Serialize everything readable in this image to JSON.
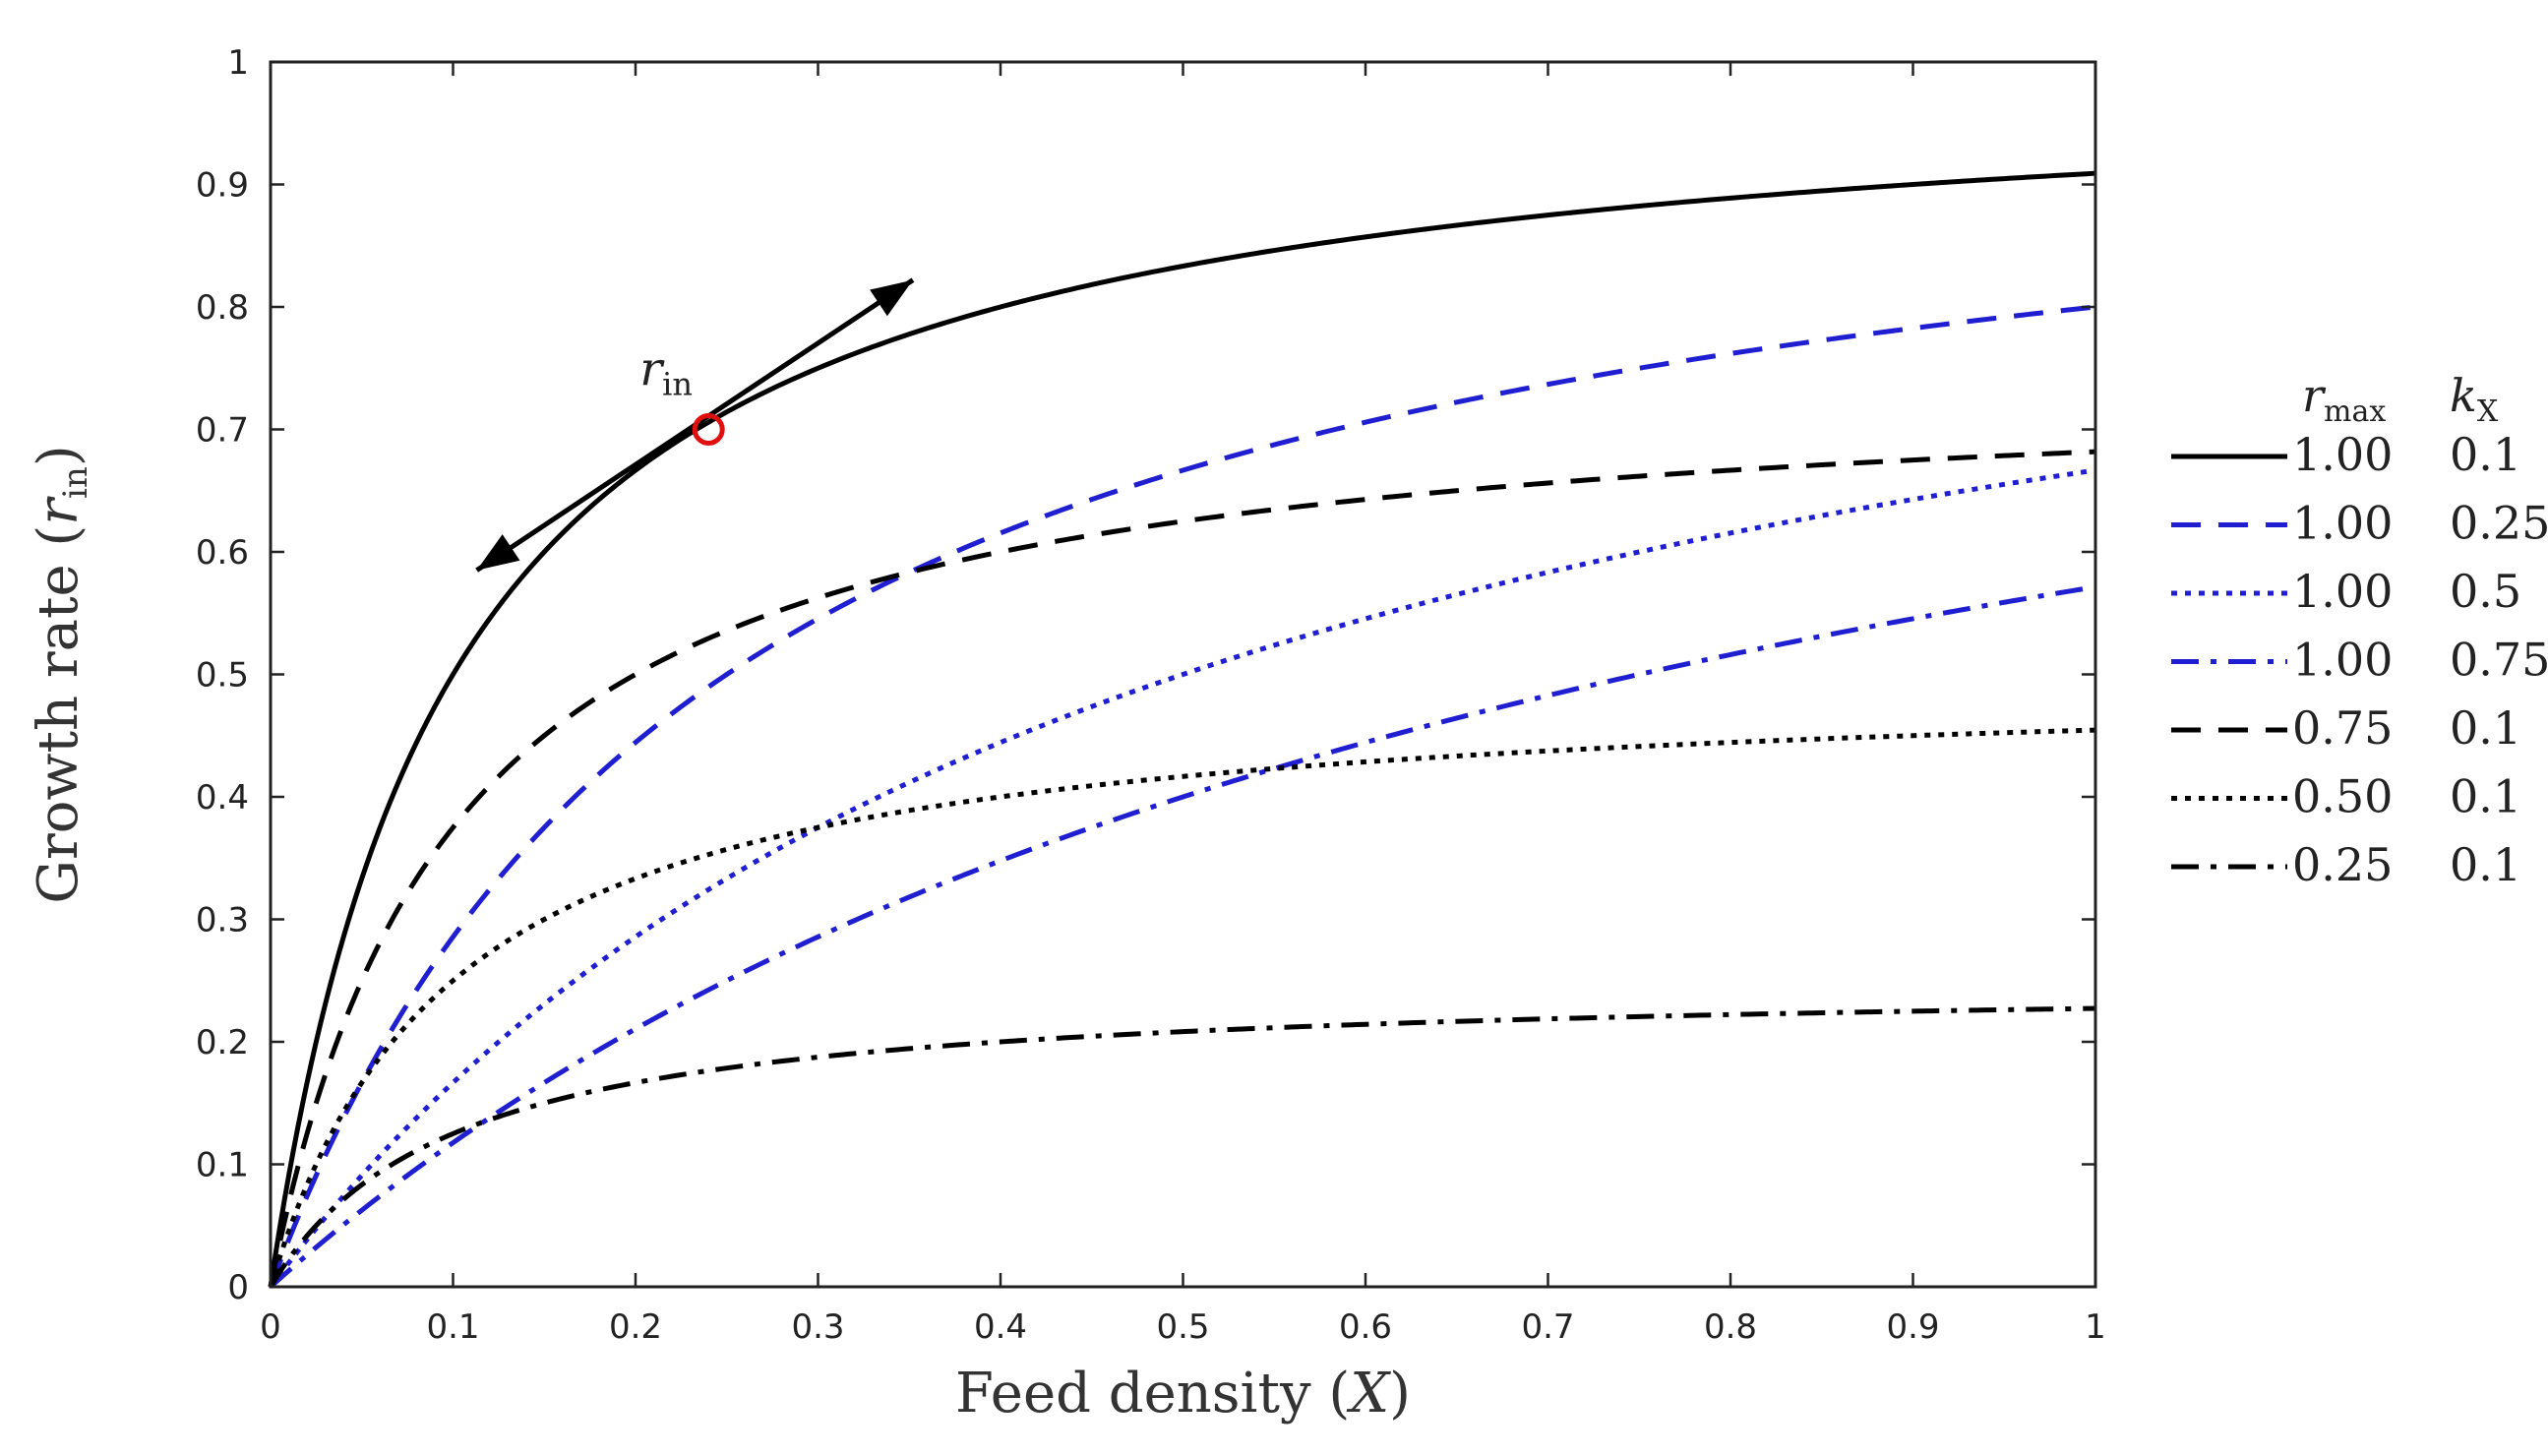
{
  "chart_data": {
    "type": "line",
    "xlabel": {
      "main": "Feed density (",
      "var": "X",
      "close": ")"
    },
    "ylabel": {
      "main": "Growth rate (",
      "var": "r",
      "sub": "in",
      "close": ")"
    },
    "xlim": [
      0,
      1
    ],
    "ylim": [
      0,
      1
    ],
    "xticks": [
      0,
      0.1,
      0.2,
      0.3,
      0.4,
      0.5,
      0.6,
      0.7,
      0.8,
      0.9,
      1
    ],
    "xtick_labels": [
      "0",
      "0.1",
      "0.2",
      "0.3",
      "0.4",
      "0.5",
      "0.6",
      "0.7",
      "0.8",
      "0.9",
      "1"
    ],
    "yticks": [
      0,
      0.1,
      0.2,
      0.3,
      0.4,
      0.5,
      0.6,
      0.7,
      0.8,
      0.9,
      1
    ],
    "ytick_labels": [
      "0",
      "0.1",
      "0.2",
      "0.3",
      "0.4",
      "0.5",
      "0.6",
      "0.7",
      "0.8",
      "0.9",
      "1"
    ],
    "grid": false,
    "legend_placement": "right-outside",
    "legend_headers": [
      {
        "var": "r",
        "sub": "max"
      },
      {
        "var": "k",
        "sub": "X"
      }
    ],
    "series": [
      {
        "rmax": "1.00",
        "kx": "0.1",
        "r_max": 1.0,
        "k_x": 0.1,
        "color": "#000000",
        "style": "solid"
      },
      {
        "rmax": "1.00",
        "kx": "0.25",
        "r_max": 1.0,
        "k_x": 0.25,
        "color": "#1f1fd1",
        "style": "dashed"
      },
      {
        "rmax": "1.00",
        "kx": "0.5",
        "r_max": 1.0,
        "k_x": 0.5,
        "color": "#1f1fd1",
        "style": "dotted"
      },
      {
        "rmax": "1.00",
        "kx": "0.75",
        "r_max": 1.0,
        "k_x": 0.75,
        "color": "#1f1fd1",
        "style": "dashdot"
      },
      {
        "rmax": "0.75",
        "kx": "0.1",
        "r_max": 0.75,
        "k_x": 0.1,
        "color": "#000000",
        "style": "dashed"
      },
      {
        "rmax": "0.50",
        "kx": "0.1",
        "r_max": 0.5,
        "k_x": 0.1,
        "color": "#000000",
        "style": "dotted"
      },
      {
        "rmax": "0.25",
        "kx": "0.1",
        "r_max": 0.25,
        "k_x": 0.1,
        "color": "#000000",
        "style": "dashdot"
      }
    ],
    "annotation": {
      "label_var": "r",
      "label_sub": "in",
      "point": {
        "x": 0.24,
        "y": 0.7
      },
      "point_color": "#e01010",
      "tangent_from": {
        "x": 0.113,
        "y": 0.585
      },
      "tangent_to": {
        "x": 0.352,
        "y": 0.822
      }
    }
  }
}
